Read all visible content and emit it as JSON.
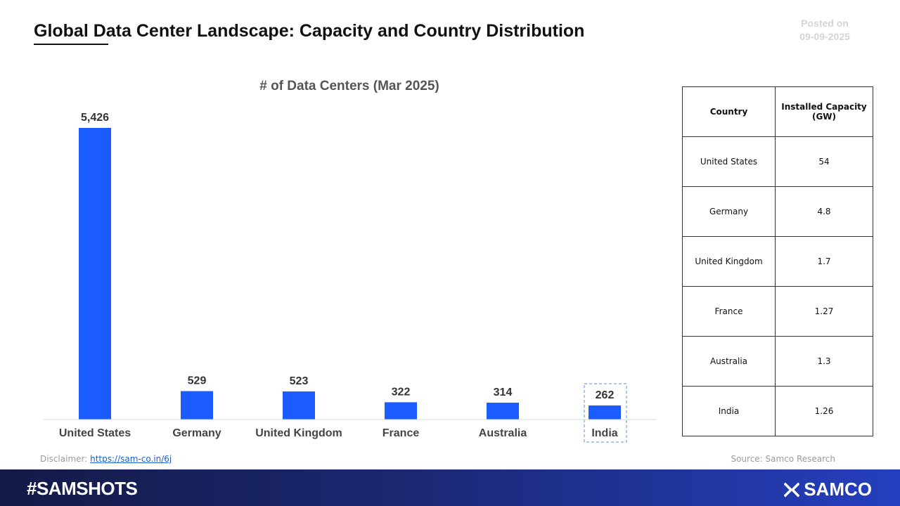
{
  "header": {
    "title": "Global Data Center Landscape: Capacity and Country Distribution",
    "posted_label": "Posted on",
    "posted_date": "09-09-2025"
  },
  "chart_data": {
    "type": "bar",
    "title": "# of Data Centers (Mar 2025)",
    "categories": [
      "United States",
      "Germany",
      "United Kingdom",
      "France",
      "Australia",
      "India"
    ],
    "values": [
      5426,
      529,
      523,
      322,
      314,
      262
    ],
    "value_labels": [
      "5,426",
      "529",
      "523",
      "322",
      "314",
      "262"
    ],
    "highlight": "India",
    "bar_color": "#1a5cff",
    "xlabel": "",
    "ylabel": "",
    "ylim": [
      0,
      5426
    ],
    "grid": false,
    "legend": "none"
  },
  "table": {
    "headers": [
      "Country",
      "Installed Capacity (GW)"
    ],
    "rows": [
      [
        "United States",
        "54"
      ],
      [
        "Germany",
        "4.8"
      ],
      [
        "United Kingdom",
        "1.7"
      ],
      [
        "France",
        "1.27"
      ],
      [
        "Australia",
        "1.3"
      ],
      [
        "India",
        "1.26"
      ]
    ]
  },
  "footer": {
    "disclaimer_label": "Disclaimer:",
    "disclaimer_link": "https://sam-co.in/6j",
    "source": "Source: Samco Research",
    "hashtag": "#SAMSHOTS",
    "brand": "SAMCO"
  },
  "colors": {
    "accent": "#1a5cff",
    "footer_dark": "#141a46",
    "footer_light": "#253fbe"
  }
}
